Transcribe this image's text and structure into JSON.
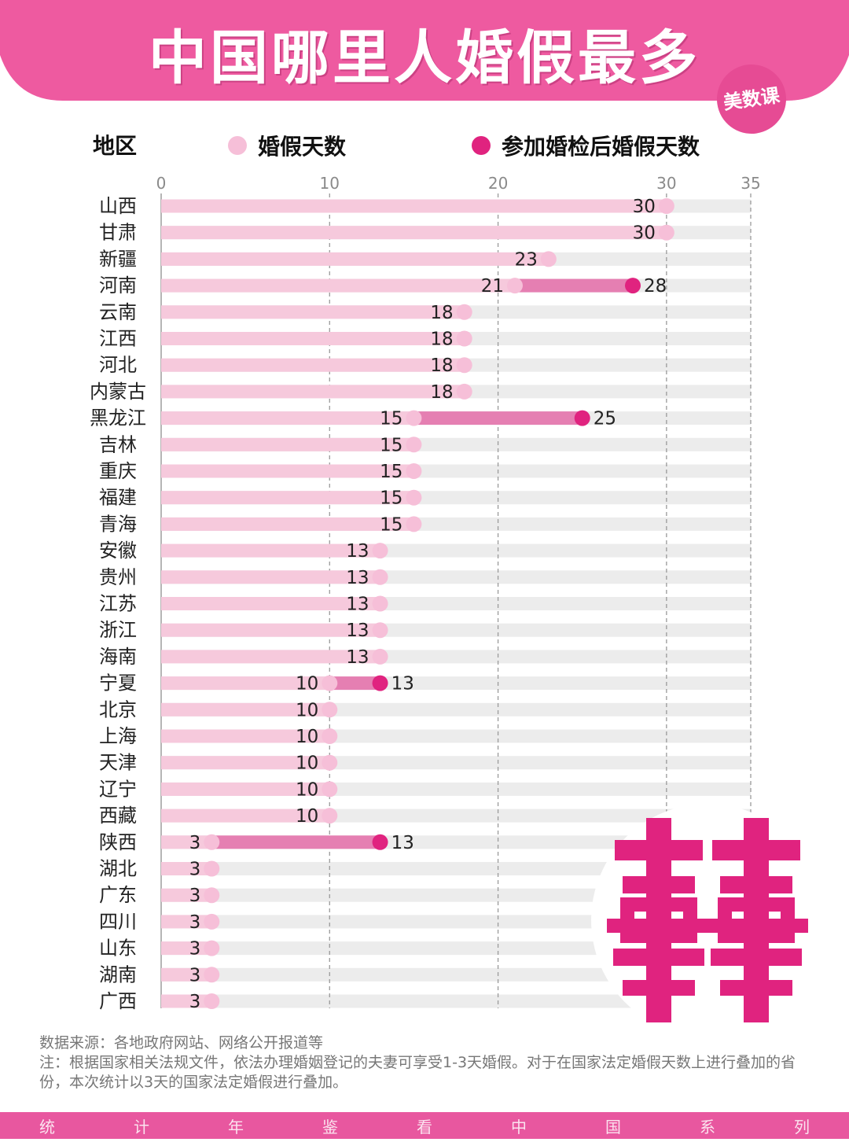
{
  "header": {
    "title": "中国哪里人婚假最多",
    "brand": "美数课"
  },
  "legend": {
    "region_label": "地区",
    "base_label": "婚假天数",
    "exam_label": "参加婚检后婚假天数"
  },
  "colors": {
    "banner": "#ee5aa0",
    "base_bar": "#f6c9dc",
    "base_dot": "#f6bfd8",
    "exam_bar": "#e57fb2",
    "exam_dot": "#e0237f",
    "track": "#ececec",
    "emblem": "#e0237f"
  },
  "chart_data": {
    "type": "bar",
    "x_ticks": [
      0,
      10,
      20,
      30,
      35
    ],
    "xlim": [
      0,
      35
    ],
    "grid": "dashed vertical at ticks",
    "legend_placement": "top",
    "series": [
      {
        "name": "婚假天数"
      },
      {
        "name": "参加婚检后婚假天数"
      }
    ],
    "rows": [
      {
        "region": "山西",
        "base": 30,
        "exam": null
      },
      {
        "region": "甘肃",
        "base": 30,
        "exam": null
      },
      {
        "region": "新疆",
        "base": 23,
        "exam": null
      },
      {
        "region": "河南",
        "base": 21,
        "exam": 28
      },
      {
        "region": "云南",
        "base": 18,
        "exam": null
      },
      {
        "region": "江西",
        "base": 18,
        "exam": null
      },
      {
        "region": "河北",
        "base": 18,
        "exam": null
      },
      {
        "region": "内蒙古",
        "base": 18,
        "exam": null
      },
      {
        "region": "黑龙江",
        "base": 15,
        "exam": 25
      },
      {
        "region": "吉林",
        "base": 15,
        "exam": null
      },
      {
        "region": "重庆",
        "base": 15,
        "exam": null
      },
      {
        "region": "福建",
        "base": 15,
        "exam": null
      },
      {
        "region": "青海",
        "base": 15,
        "exam": null
      },
      {
        "region": "安徽",
        "base": 13,
        "exam": null
      },
      {
        "region": "贵州",
        "base": 13,
        "exam": null
      },
      {
        "region": "江苏",
        "base": 13,
        "exam": null
      },
      {
        "region": "浙江",
        "base": 13,
        "exam": null
      },
      {
        "region": "海南",
        "base": 13,
        "exam": null
      },
      {
        "region": "宁夏",
        "base": 10,
        "exam": 13
      },
      {
        "region": "北京",
        "base": 10,
        "exam": null
      },
      {
        "region": "上海",
        "base": 10,
        "exam": null
      },
      {
        "region": "天津",
        "base": 10,
        "exam": null
      },
      {
        "region": "辽宁",
        "base": 10,
        "exam": null
      },
      {
        "region": "西藏",
        "base": 10,
        "exam": null
      },
      {
        "region": "陕西",
        "base": 3,
        "exam": 13
      },
      {
        "region": "湖北",
        "base": 3,
        "exam": null
      },
      {
        "region": "广东",
        "base": 3,
        "exam": null
      },
      {
        "region": "四川",
        "base": 3,
        "exam": null
      },
      {
        "region": "山东",
        "base": 3,
        "exam": null
      },
      {
        "region": "湖南",
        "base": 3,
        "exam": null
      },
      {
        "region": "广西",
        "base": 3,
        "exam": null
      }
    ]
  },
  "notes": {
    "source": "数据来源：各地政府网站、网络公开报道等",
    "note": "注：根据国家相关法规文件，依法办理婚姻登记的夫妻可享受1-3天婚假。对于在国家法定婚假天数上进行叠加的省份，本次统计以3天的国家法定婚假进行叠加。"
  },
  "footer": {
    "chars": [
      "统",
      "计",
      "年",
      "鉴",
      "看",
      "中",
      "国",
      "系",
      "列"
    ]
  }
}
